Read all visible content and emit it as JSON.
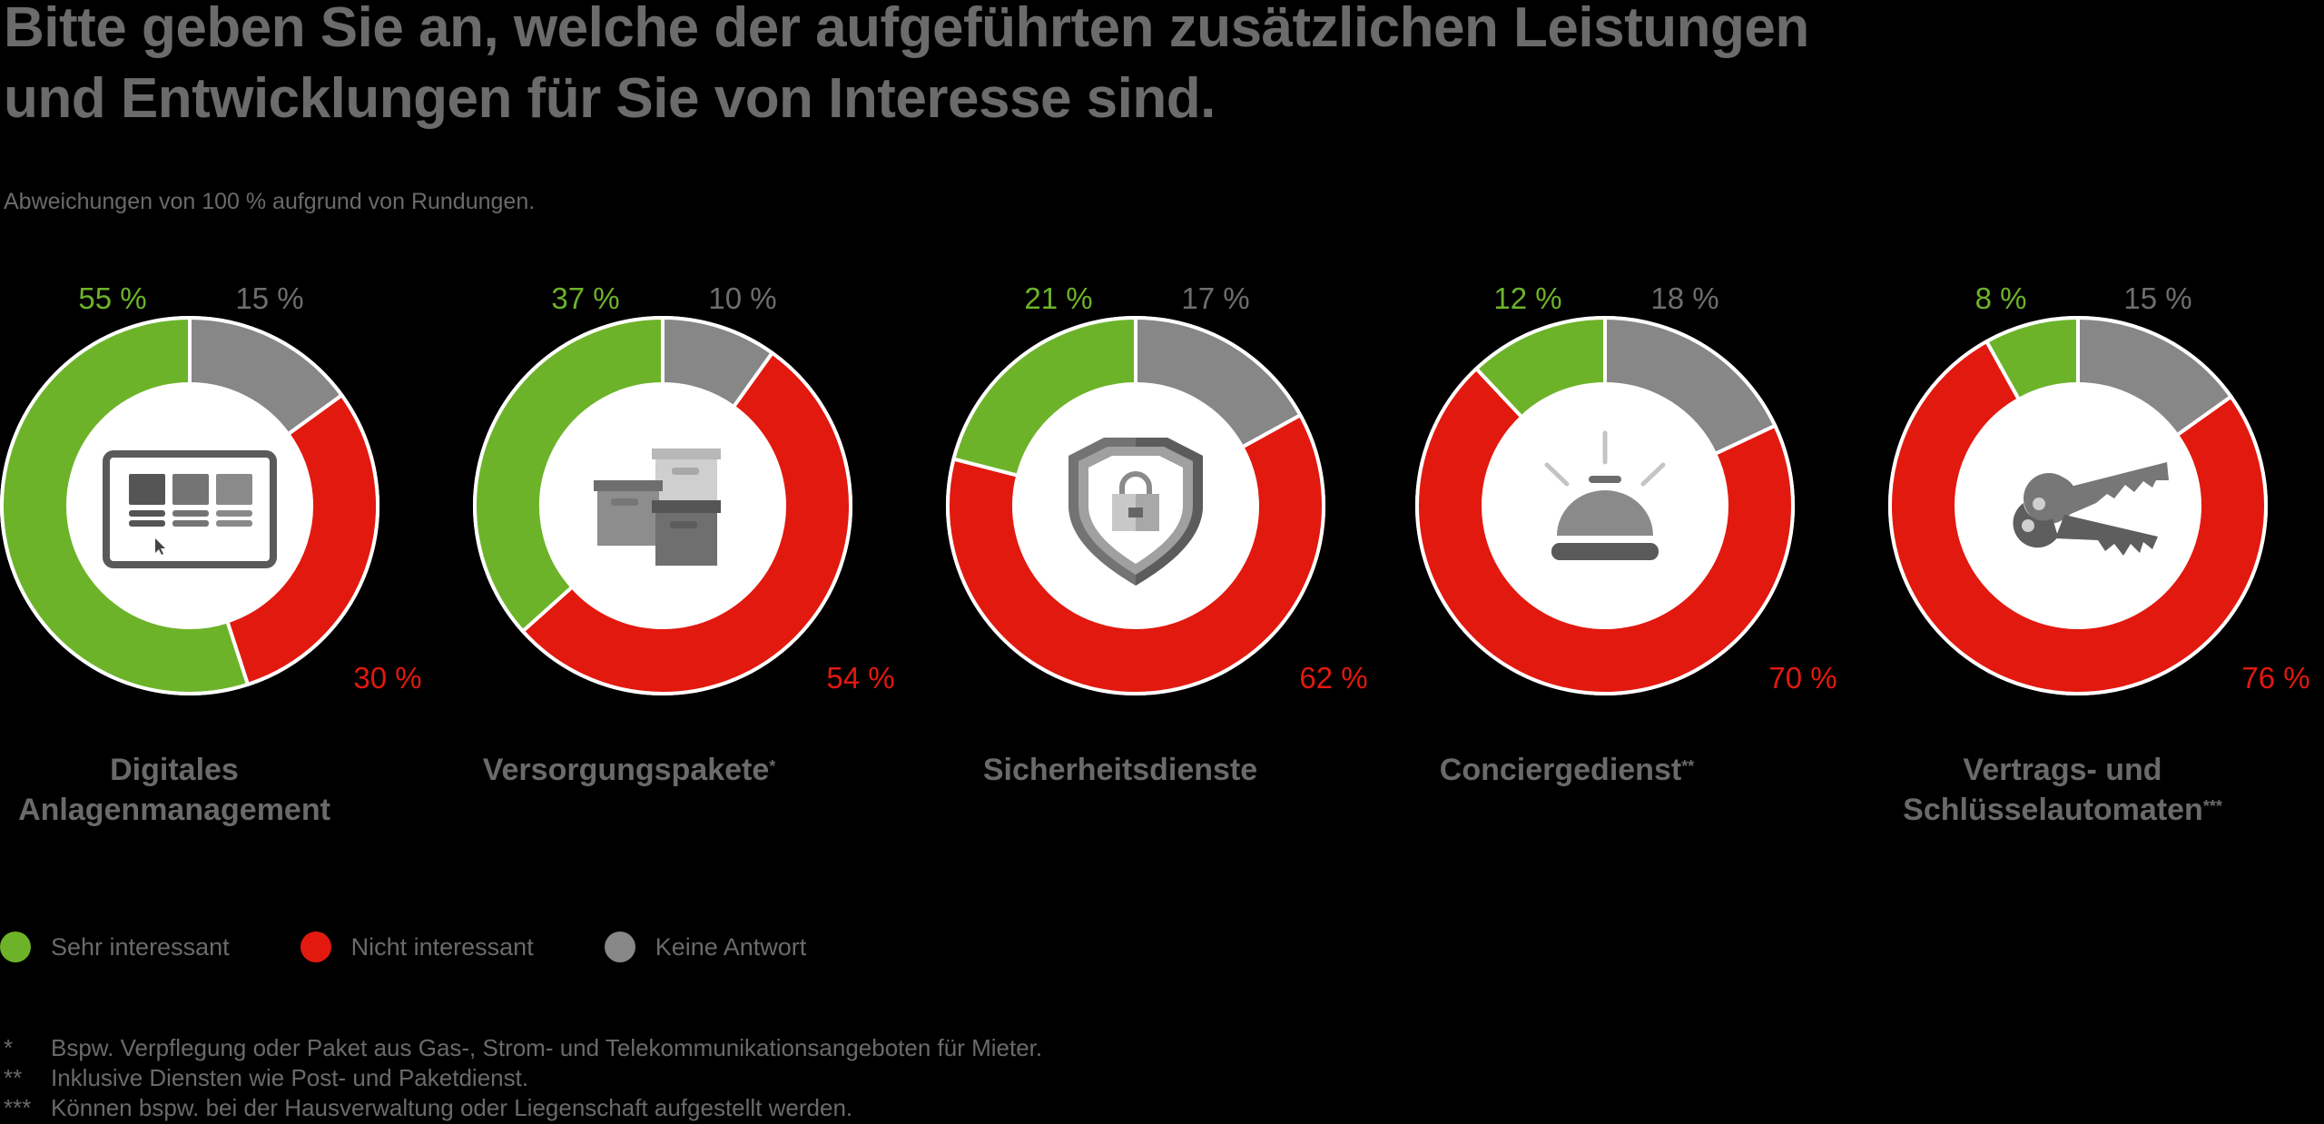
{
  "title_lines": [
    "Bitte geben Sie an, welche der aufgeführten zusätzlichen Leistungen",
    "und Entwicklungen für Sie von Interesse sind."
  ],
  "subtitle": "Abweichungen von 100 % aufgrund von Rundungen.",
  "colors": {
    "sehr_interessant": "#6db32a",
    "nicht_interessant": "#e2190f",
    "keine_antwort": "#878787",
    "text": "#6a6a6a"
  },
  "legend": [
    {
      "label": "Sehr interessant",
      "color": "#6db32a"
    },
    {
      "label": "Nicht interessant",
      "color": "#e2190f"
    },
    {
      "label": "Keine Antwort",
      "color": "#878787"
    }
  ],
  "footnotes": [
    {
      "mark": "*",
      "text": "Bspw. Verpflegung oder Paket aus Gas-, Strom- und Telekommunikationsangeboten für Mieter."
    },
    {
      "mark": "**",
      "text": "Inklusive Diensten wie Post- und Paketdienst."
    },
    {
      "mark": "***",
      "text": "Können bspw. bei der Hausverwaltung oder Liegenschaft aufgestellt werden."
    }
  ],
  "chart_data": {
    "type": "pie",
    "subtype": "donut",
    "title": "Bitte geben Sie an, welche der aufgeführten zusätzlichen Leistungen und Entwicklungen für Sie von Interesse sind.",
    "series_names": [
      "Keine Antwort",
      "Nicht interessant",
      "Sehr interessant"
    ],
    "unit": "%",
    "legend_position": "bottom-left",
    "donuts": [
      {
        "category_lines": [
          "Digitales",
          "Anlagenmanagement"
        ],
        "footnote_mark": "",
        "icon": "dashboard-screen-icon",
        "values": {
          "keine_antwort": 15,
          "nicht_interessant": 30,
          "sehr_interessant": 55
        },
        "labels": {
          "keine_antwort": "15 %",
          "nicht_interessant": "30 %",
          "sehr_interessant": "55 %"
        }
      },
      {
        "category_lines": [
          "Versorgungspakete"
        ],
        "footnote_mark": "*",
        "icon": "boxes-icon",
        "values": {
          "keine_antwort": 10,
          "nicht_interessant": 54,
          "sehr_interessant": 37
        },
        "labels": {
          "keine_antwort": "10 %",
          "nicht_interessant": "54 %",
          "sehr_interessant": "37 %"
        }
      },
      {
        "category_lines": [
          "Sicherheitsdienste"
        ],
        "footnote_mark": "",
        "icon": "shield-lock-icon",
        "values": {
          "keine_antwort": 17,
          "nicht_interessant": 62,
          "sehr_interessant": 21
        },
        "labels": {
          "keine_antwort": "17 %",
          "nicht_interessant": "62 %",
          "sehr_interessant": "21 %"
        }
      },
      {
        "category_lines": [
          "Conciergedienst"
        ],
        "footnote_mark": "**",
        "icon": "service-bell-icon",
        "values": {
          "keine_antwort": 18,
          "nicht_interessant": 70,
          "sehr_interessant": 12
        },
        "labels": {
          "keine_antwort": "18 %",
          "nicht_interessant": "70 %",
          "sehr_interessant": "12 %"
        }
      },
      {
        "category_lines": [
          "Vertrags- und",
          "Schlüsselautomaten"
        ],
        "footnote_mark": "***",
        "icon": "keys-icon",
        "values": {
          "keine_antwort": 15,
          "nicht_interessant": 76,
          "sehr_interessant": 8
        },
        "labels": {
          "keine_antwort": "15 %",
          "nicht_interessant": "76 %",
          "sehr_interessant": "8 %"
        }
      }
    ]
  }
}
